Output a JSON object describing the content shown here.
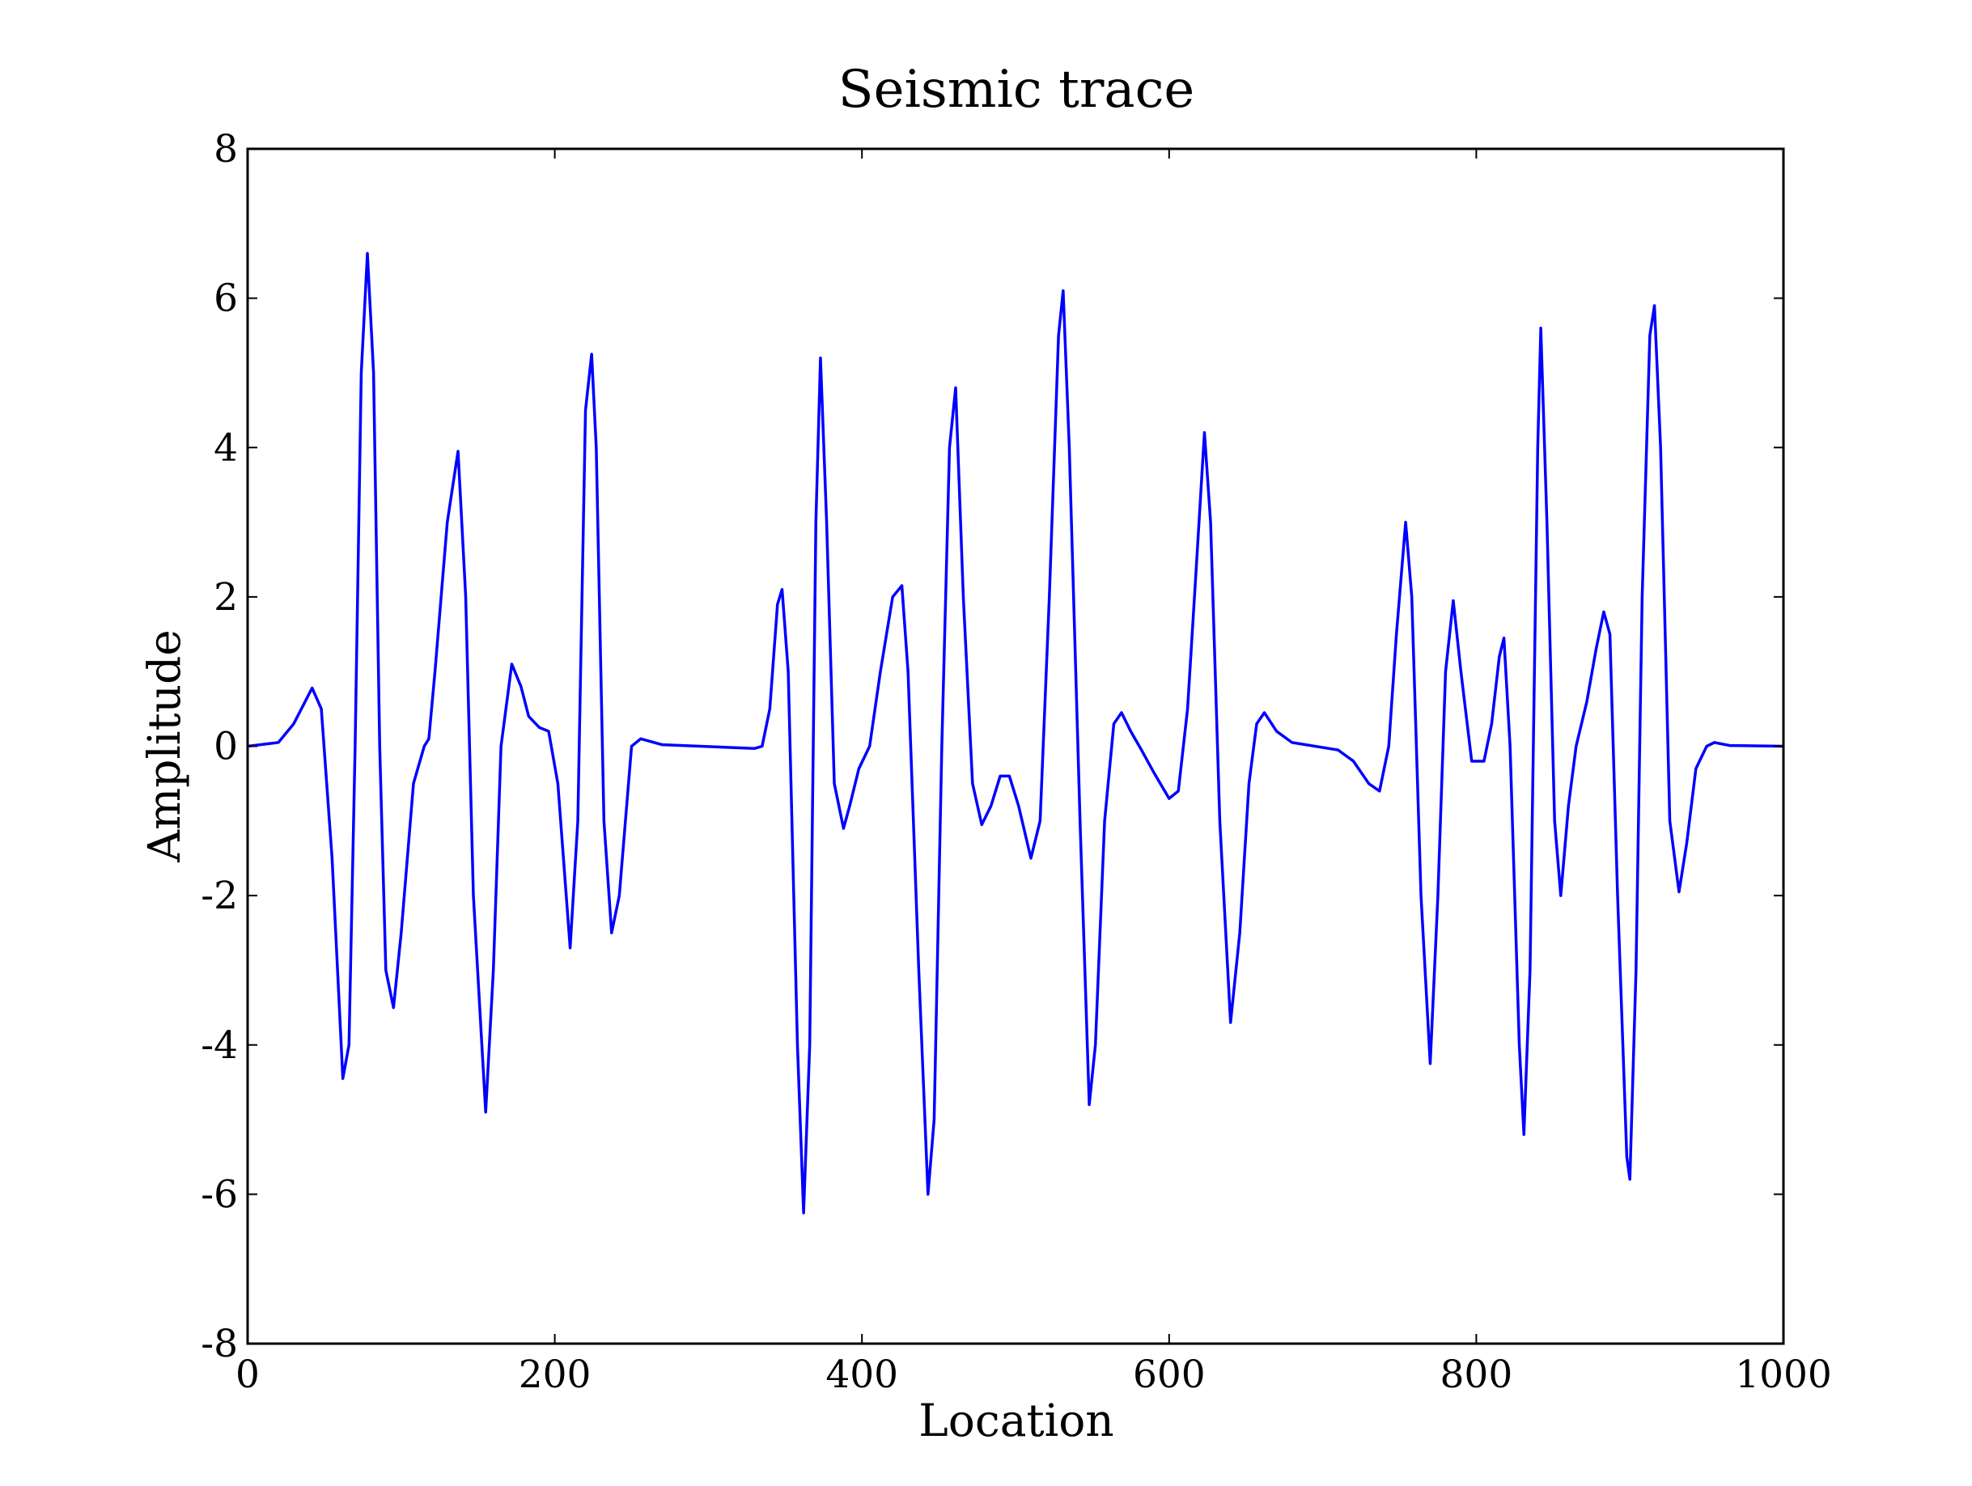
{
  "chart_data": {
    "type": "line",
    "title": "Seismic trace",
    "x_label": "Location",
    "y_label": "Amplitude",
    "x": [
      0,
      20,
      30,
      42,
      48,
      55,
      62,
      66,
      70,
      74,
      78,
      82,
      86,
      90,
      95,
      100,
      108,
      115,
      118,
      122,
      130,
      137,
      142,
      147,
      155,
      160,
      165,
      172,
      178,
      183,
      190,
      196,
      202,
      210,
      215,
      220,
      224,
      227,
      232,
      237,
      242,
      250,
      256,
      270,
      330,
      335,
      340,
      345,
      348,
      352,
      358,
      362,
      366,
      370,
      373,
      377,
      382,
      388,
      392,
      398,
      405,
      412,
      420,
      426,
      430,
      437,
      443,
      447,
      452,
      457,
      461,
      466,
      472,
      478,
      484,
      490,
      496,
      502,
      510,
      516,
      522,
      528,
      531,
      535,
      542,
      548,
      552,
      558,
      564,
      569,
      575,
      582,
      590,
      600,
      606,
      612,
      618,
      623,
      627,
      633,
      640,
      646,
      652,
      657,
      662,
      670,
      680,
      710,
      720,
      730,
      737,
      743,
      748,
      754,
      758,
      764,
      770,
      775,
      780,
      785,
      790,
      797,
      805,
      810,
      815,
      818,
      822,
      828,
      831,
      835,
      840,
      842,
      846,
      851,
      855,
      860,
      865,
      872,
      878,
      883,
      887,
      892,
      898,
      900,
      904,
      908,
      913,
      916,
      920,
      926,
      932,
      937,
      943,
      950,
      955,
      965,
      1000
    ],
    "series": [
      {
        "name": "trace",
        "color": "#0000ff",
        "values": [
          0,
          0.05,
          0.3,
          0.78,
          0.5,
          -1.5,
          -4.45,
          -4,
          0,
          5,
          6.6,
          5,
          0,
          -3,
          -3.5,
          -2.5,
          -0.5,
          0,
          0.1,
          1,
          3,
          3.95,
          2,
          -2,
          -4.9,
          -3,
          0,
          1.1,
          0.8,
          0.4,
          0.25,
          0.2,
          -0.5,
          -2.7,
          -1,
          4.5,
          5.25,
          4,
          -1,
          -2.5,
          -2,
          0,
          0.1,
          0.02,
          -0.03,
          0,
          0.5,
          1.9,
          2.1,
          1,
          -4,
          -6.25,
          -4,
          3,
          5.2,
          3,
          -0.5,
          -1.1,
          -0.8,
          -0.3,
          0,
          1,
          2,
          2.15,
          1,
          -3,
          -6,
          -5,
          0,
          4,
          4.8,
          2,
          -0.5,
          -1.05,
          -0.8,
          -0.4,
          -0.4,
          -0.8,
          -1.5,
          -1,
          2,
          5.5,
          6.1,
          4,
          -1,
          -4.8,
          -4,
          -1,
          0.3,
          0.45,
          0.2,
          -0.05,
          -0.35,
          -0.7,
          -0.6,
          0.5,
          2.5,
          4.2,
          3,
          -1,
          -3.7,
          -2.5,
          -0.5,
          0.3,
          0.45,
          0.2,
          0.05,
          -0.05,
          -0.2,
          -0.5,
          -0.6,
          0,
          1.5,
          3.0,
          2,
          -2,
          -4.25,
          -2,
          1,
          1.95,
          1,
          -0.2,
          -0.2,
          0.3,
          1.2,
          1.45,
          0,
          -4,
          -5.2,
          -3,
          4,
          5.6,
          3,
          -1,
          -2.0,
          -0.8,
          0,
          0.6,
          1.3,
          1.8,
          1.5,
          -2,
          -5.5,
          -5.8,
          -3,
          2,
          5.5,
          5.9,
          4,
          -1,
          -1.95,
          -1.3,
          -0.3,
          0,
          0.05,
          0.01,
          0
        ]
      }
    ],
    "xlim": [
      0,
      1000
    ],
    "xticks": [
      0,
      200,
      400,
      600,
      800,
      1000
    ],
    "ylim": [
      -8,
      8
    ],
    "yticks": [
      -8,
      -6,
      -4,
      -2,
      0,
      2,
      4,
      6,
      8
    ]
  }
}
